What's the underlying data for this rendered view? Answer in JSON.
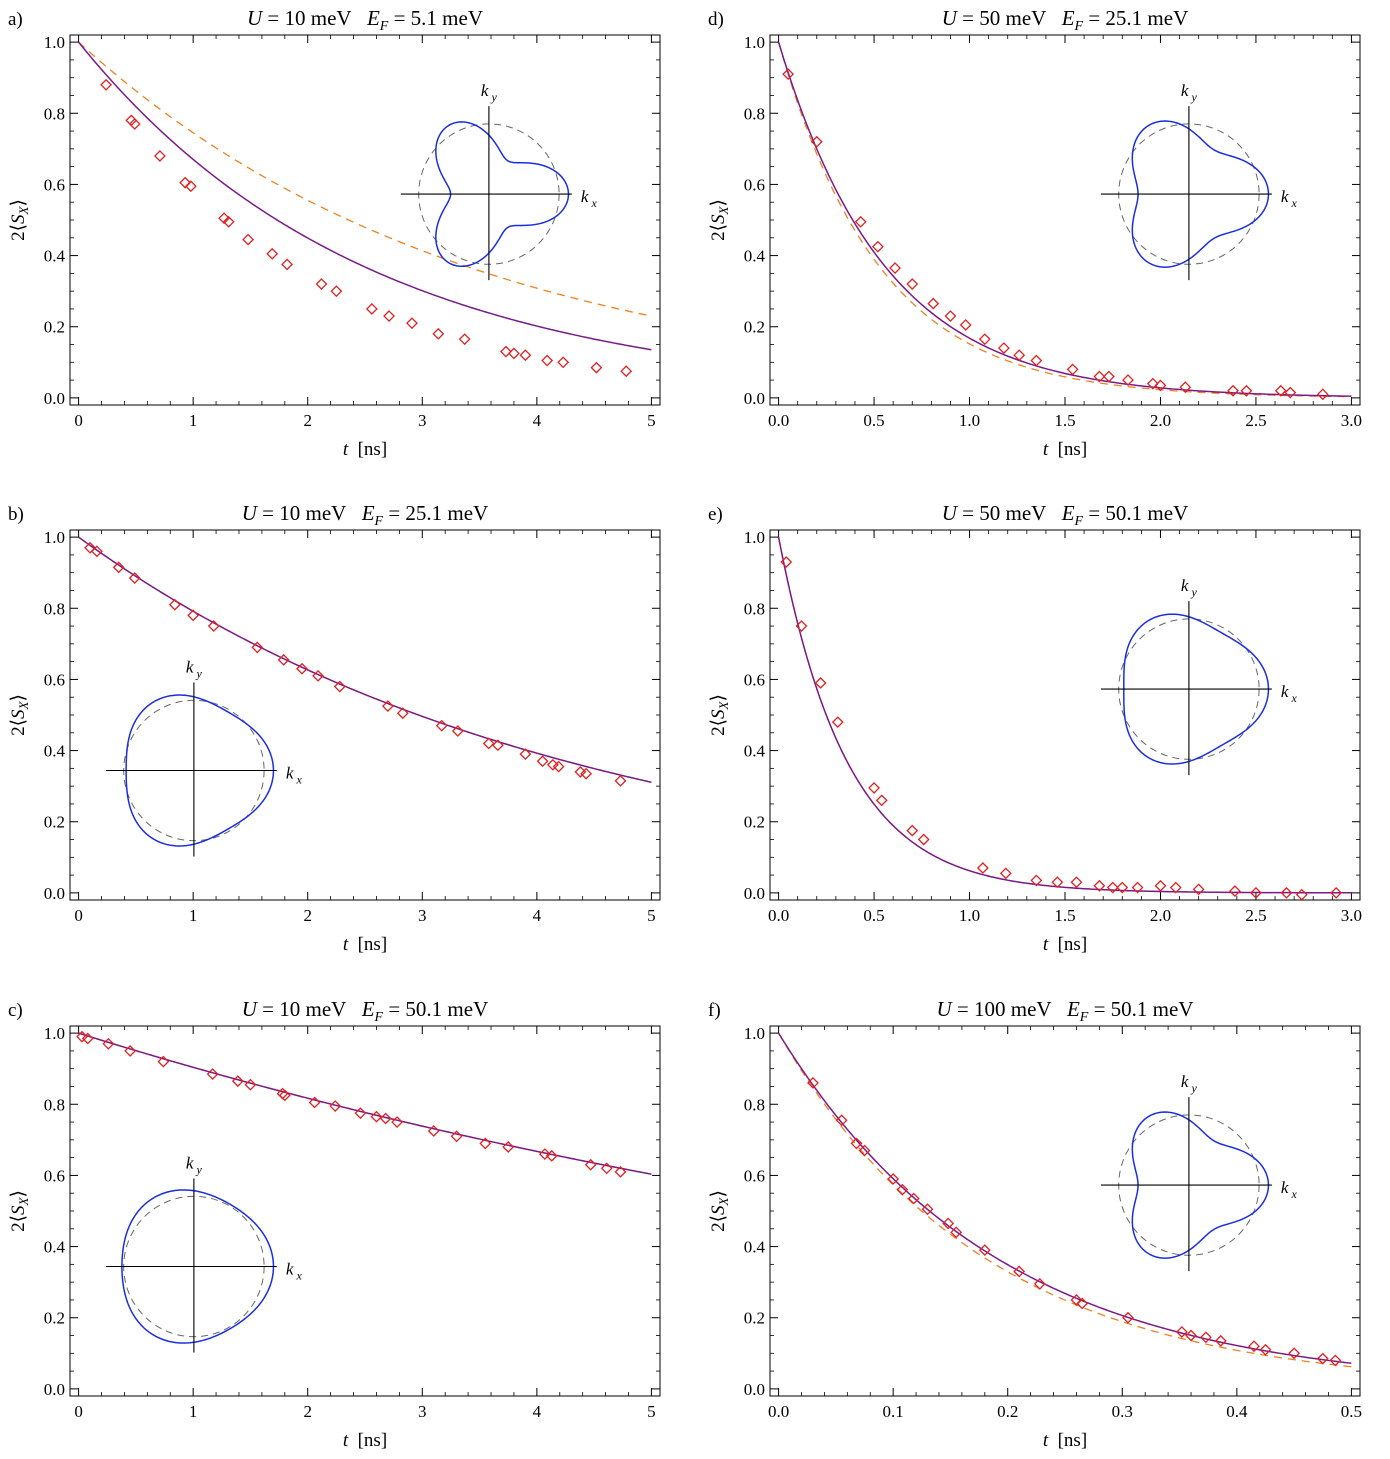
{
  "chart_data": [
    {
      "panel": "a)",
      "type": "scatter",
      "title": "U = 10 meV   E_F = 5.1 meV",
      "xlabel": "t [ns]",
      "ylabel": "2⟨S_X⟩",
      "xlim": [
        0,
        5
      ],
      "ylim": [
        0,
        1
      ],
      "xticks": [
        0,
        1,
        2,
        3,
        4,
        5
      ],
      "xticklabels": [
        "0",
        "1",
        "2",
        "3",
        "4",
        "5"
      ],
      "yticks": [
        0,
        0.2,
        0.4,
        0.6,
        0.8,
        1.0
      ],
      "yticklabels": [
        "0.0",
        "0.2",
        "0.4",
        "0.6",
        "0.8",
        "1.0"
      ],
      "solid_tau": 2.5,
      "dashed_tau": 3.4,
      "inset": {
        "corner": "top-right",
        "kx_label": "k_x",
        "ky_label": "k_y",
        "warp": 0.35
      },
      "series": [
        {
          "marker": "diamond",
          "x": [
            0.24,
            0.46,
            0.49,
            0.71,
            0.93,
            0.98,
            1.27,
            1.31,
            1.48,
            1.69,
            1.82,
            2.12,
            2.25,
            2.56,
            2.71,
            2.91,
            3.14,
            3.37,
            3.73,
            3.8,
            3.9,
            4.09,
            4.23,
            4.52,
            4.78
          ],
          "y": [
            0.88,
            0.78,
            0.77,
            0.68,
            0.605,
            0.595,
            0.505,
            0.495,
            0.445,
            0.405,
            0.375,
            0.32,
            0.3,
            0.25,
            0.23,
            0.21,
            0.18,
            0.165,
            0.13,
            0.125,
            0.12,
            0.105,
            0.1,
            0.085,
            0.075
          ]
        }
      ]
    },
    {
      "panel": "b)",
      "type": "scatter",
      "title": "U = 10 meV   E_F = 25.1 meV",
      "xlabel": "t [ns]",
      "ylabel": "2⟨S_X⟩",
      "xlim": [
        0,
        5
      ],
      "ylim": [
        0,
        1
      ],
      "xticks": [
        0,
        1,
        2,
        3,
        4,
        5
      ],
      "xticklabels": [
        "0",
        "1",
        "2",
        "3",
        "4",
        "5"
      ],
      "yticks": [
        0,
        0.2,
        0.4,
        0.6,
        0.8,
        1.0
      ],
      "yticklabels": [
        "0.0",
        "0.2",
        "0.4",
        "0.6",
        "0.8",
        "1.0"
      ],
      "solid_tau": 4.28,
      "dashed_tau": 4.28,
      "inset": {
        "corner": "bottom-left",
        "kx_label": "k_x",
        "ky_label": "k_y",
        "warp": 0.08
      },
      "series": [
        {
          "marker": "diamond",
          "x": [
            0.1,
            0.16,
            0.35,
            0.49,
            0.84,
            1.0,
            1.18,
            1.56,
            1.79,
            1.95,
            2.09,
            2.28,
            2.7,
            2.83,
            3.17,
            3.31,
            3.58,
            3.66,
            3.9,
            4.05,
            4.14,
            4.19,
            4.38,
            4.43,
            4.73
          ],
          "y": [
            0.97,
            0.96,
            0.915,
            0.885,
            0.81,
            0.78,
            0.75,
            0.69,
            0.655,
            0.63,
            0.61,
            0.58,
            0.525,
            0.505,
            0.47,
            0.455,
            0.42,
            0.415,
            0.39,
            0.37,
            0.36,
            0.355,
            0.34,
            0.335,
            0.315
          ]
        }
      ]
    },
    {
      "panel": "c)",
      "type": "scatter",
      "title": "U = 10 meV   E_F = 50.1 meV",
      "xlabel": "t [ns]",
      "ylabel": "2⟨S_X⟩",
      "xlim": [
        0,
        5
      ],
      "ylim": [
        0,
        1
      ],
      "xticks": [
        0,
        1,
        2,
        3,
        4,
        5
      ],
      "xticklabels": [
        "0",
        "1",
        "2",
        "3",
        "4",
        "5"
      ],
      "yticks": [
        0,
        0.2,
        0.4,
        0.6,
        0.8,
        1.0
      ],
      "yticklabels": [
        "0.0",
        "0.2",
        "0.4",
        "0.6",
        "0.8",
        "1.0"
      ],
      "solid_tau": 9.9,
      "dashed_tau": 9.9,
      "inset": {
        "corner": "bottom-left",
        "kx_label": "k_x",
        "ky_label": "k_y",
        "warp": 0.05
      },
      "series": [
        {
          "marker": "diamond",
          "x": [
            0.03,
            0.08,
            0.26,
            0.45,
            0.74,
            1.17,
            1.39,
            1.5,
            1.78,
            1.8,
            2.06,
            2.24,
            2.46,
            2.6,
            2.68,
            2.78,
            3.1,
            3.3,
            3.55,
            3.75,
            4.07,
            4.13,
            4.47,
            4.61,
            4.73
          ],
          "y": [
            0.99,
            0.985,
            0.97,
            0.95,
            0.92,
            0.885,
            0.865,
            0.855,
            0.83,
            0.825,
            0.805,
            0.795,
            0.775,
            0.765,
            0.76,
            0.75,
            0.725,
            0.71,
            0.69,
            0.68,
            0.66,
            0.655,
            0.63,
            0.62,
            0.61
          ]
        }
      ]
    },
    {
      "panel": "d)",
      "type": "scatter",
      "title": "U = 50 meV   E_F = 25.1 meV",
      "xlabel": "t [ns]",
      "ylabel": "2⟨S_X⟩",
      "xlim": [
        0,
        3
      ],
      "ylim": [
        0,
        1
      ],
      "xticks": [
        0,
        0.5,
        1,
        1.5,
        2,
        2.5,
        3
      ],
      "xticklabels": [
        "0.0",
        "0.5",
        "1.0",
        "1.5",
        "2.0",
        "2.5",
        "3.0"
      ],
      "yticks": [
        0,
        0.2,
        0.4,
        0.6,
        0.8,
        1.0
      ],
      "yticklabels": [
        "0.0",
        "0.2",
        "0.4",
        "0.6",
        "0.8",
        "1.0"
      ],
      "solid_tau": 0.56,
      "dashed_tau": 0.53,
      "inset": {
        "corner": "top-right",
        "kx_label": "k_x",
        "ky_label": "k_y",
        "warp": 0.22
      },
      "series": [
        {
          "marker": "diamond",
          "x": [
            0.05,
            0.2,
            0.43,
            0.52,
            0.61,
            0.7,
            0.81,
            0.9,
            0.98,
            1.08,
            1.18,
            1.26,
            1.35,
            1.54,
            1.68,
            1.73,
            1.83,
            1.96,
            2.0,
            2.13,
            2.38,
            2.45,
            2.63,
            2.68,
            2.85
          ],
          "y": [
            0.91,
            0.72,
            0.495,
            0.425,
            0.365,
            0.32,
            0.265,
            0.23,
            0.205,
            0.165,
            0.14,
            0.12,
            0.105,
            0.08,
            0.06,
            0.06,
            0.05,
            0.04,
            0.035,
            0.03,
            0.02,
            0.02,
            0.02,
            0.015,
            0.01
          ]
        }
      ]
    },
    {
      "panel": "e)",
      "type": "scatter",
      "title": "U = 50 meV   E_F = 50.1 meV",
      "xlabel": "t [ns]",
      "ylabel": "2⟨S_X⟩",
      "xlim": [
        0,
        3
      ],
      "ylim": [
        0,
        1
      ],
      "xticks": [
        0,
        0.5,
        1,
        1.5,
        2,
        2.5,
        3
      ],
      "xticklabels": [
        "0.0",
        "0.5",
        "1.0",
        "1.5",
        "2.0",
        "2.5",
        "3.0"
      ],
      "yticks": [
        0,
        0.2,
        0.4,
        0.6,
        0.8,
        1.0
      ],
      "yticklabels": [
        "0.0",
        "0.2",
        "0.4",
        "0.6",
        "0.8",
        "1.0"
      ],
      "solid_tau": 0.36,
      "dashed_tau": 0.36,
      "inset": {
        "corner": "top-right",
        "kx_label": "k_x",
        "ky_label": "k_y",
        "warp": 0.1
      },
      "series": [
        {
          "marker": "diamond",
          "x": [
            0.04,
            0.12,
            0.22,
            0.31,
            0.5,
            0.54,
            0.7,
            0.76,
            1.07,
            1.19,
            1.35,
            1.46,
            1.56,
            1.68,
            1.75,
            1.8,
            1.88,
            2.0,
            2.08,
            2.2,
            2.39,
            2.5,
            2.66,
            2.74,
            2.92
          ],
          "y": [
            0.93,
            0.75,
            0.59,
            0.48,
            0.295,
            0.26,
            0.175,
            0.15,
            0.07,
            0.055,
            0.035,
            0.03,
            0.03,
            0.02,
            0.015,
            0.015,
            0.015,
            0.02,
            0.015,
            0.01,
            0.005,
            0.0,
            0.0,
            -0.005,
            0.0
          ]
        }
      ]
    },
    {
      "panel": "f)",
      "type": "scatter",
      "title": "U = 100 meV   E_F = 50.1 meV",
      "xlabel": "t [ns]",
      "ylabel": "2⟨S_X⟩",
      "xlim": [
        0,
        0.5
      ],
      "ylim": [
        0,
        1
      ],
      "xticks": [
        0,
        0.1,
        0.2,
        0.3,
        0.4,
        0.5
      ],
      "xticklabels": [
        "0.0",
        "0.1",
        "0.2",
        "0.3",
        "0.4",
        "0.5"
      ],
      "yticks": [
        0,
        0.2,
        0.4,
        0.6,
        0.8,
        1.0
      ],
      "yticklabels": [
        "0.0",
        "0.2",
        "0.4",
        "0.6",
        "0.8",
        "1.0"
      ],
      "solid_tau": 0.19,
      "dashed_tau": 0.18,
      "inset": {
        "corner": "top-right",
        "kx_label": "k_x",
        "ky_label": "k_y",
        "warp": 0.22
      },
      "series": [
        {
          "marker": "diamond",
          "x": [
            0.03,
            0.055,
            0.068,
            0.075,
            0.1,
            0.108,
            0.118,
            0.13,
            0.148,
            0.155,
            0.18,
            0.21,
            0.228,
            0.26,
            0.265,
            0.305,
            0.352,
            0.36,
            0.373,
            0.386,
            0.415,
            0.425,
            0.45,
            0.475,
            0.486
          ],
          "y": [
            0.86,
            0.755,
            0.69,
            0.67,
            0.59,
            0.56,
            0.535,
            0.505,
            0.465,
            0.44,
            0.39,
            0.33,
            0.295,
            0.25,
            0.24,
            0.2,
            0.16,
            0.15,
            0.145,
            0.135,
            0.12,
            0.11,
            0.1,
            0.085,
            0.08
          ]
        }
      ]
    }
  ]
}
